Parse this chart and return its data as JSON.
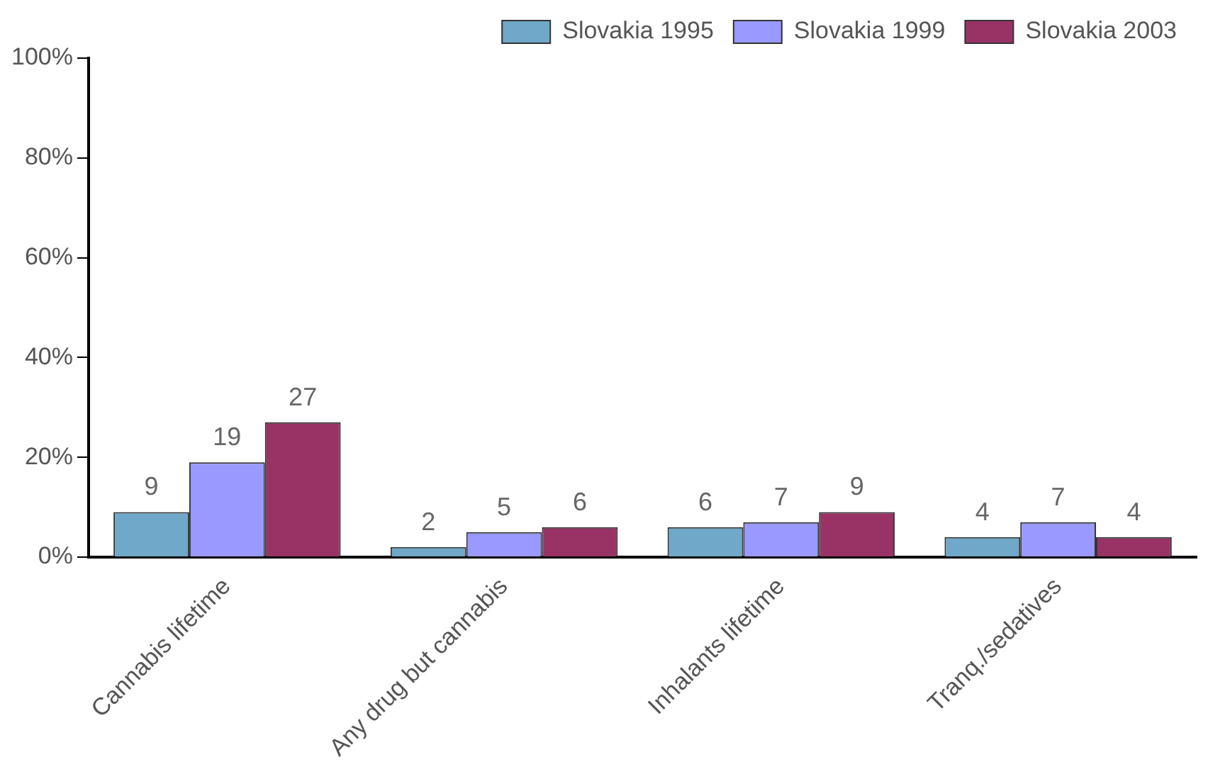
{
  "chart_data": {
    "type": "bar",
    "categories": [
      "Cannabis lifetime",
      "Any drug but cannabis",
      "Inhalants lifetime",
      "Tranq./sedatives"
    ],
    "series": [
      {
        "name": "Slovakia 1995",
        "color": "#6fa8c8",
        "values": [
          9,
          2,
          6,
          4
        ]
      },
      {
        "name": "Slovakia 1999",
        "color": "#9999ff",
        "values": [
          19,
          5,
          7,
          7
        ]
      },
      {
        "name": "Slovakia 2003",
        "color": "#993366",
        "values": [
          27,
          6,
          9,
          4
        ]
      }
    ],
    "ylim": [
      0,
      100
    ],
    "yticks": [
      {
        "value": 0,
        "label": "0%"
      },
      {
        "value": 20,
        "label": "20%"
      },
      {
        "value": 40,
        "label": "40%"
      },
      {
        "value": 60,
        "label": "60%"
      },
      {
        "value": 80,
        "label": "80%"
      },
      {
        "value": 100,
        "label": "100%"
      }
    ],
    "data_labels": true,
    "grid": false,
    "legend": "top right"
  }
}
